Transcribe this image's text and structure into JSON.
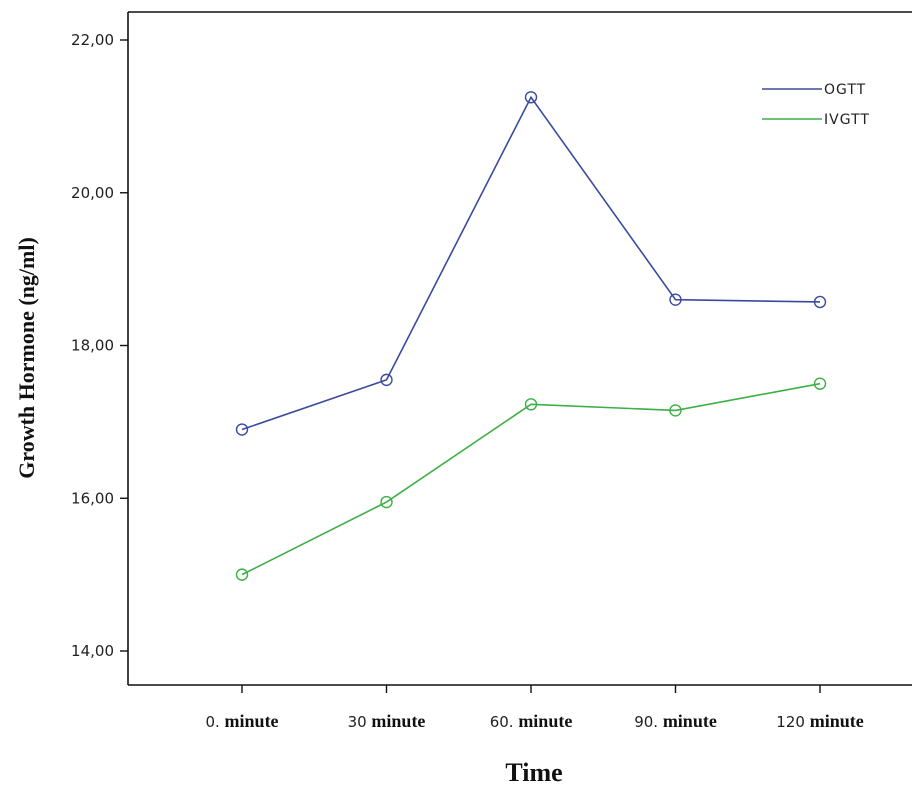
{
  "chart_data": {
    "type": "line",
    "title": "",
    "xlabel": "Time",
    "ylabel": "Growth Hormone (ng/ml)",
    "ylim": [
      13.5,
      22.5
    ],
    "y_ticks": [
      "14,00",
      "16,00",
      "18,00",
      "20,00",
      "22,00"
    ],
    "y_tick_values": [
      14,
      16,
      18,
      20,
      22
    ],
    "categories": [
      {
        "prefix": "0.",
        "word": "minute"
      },
      {
        "prefix": "30",
        "word": "minute"
      },
      {
        "prefix": "60.",
        "word": "minute"
      },
      {
        "prefix": "90.",
        "word": "minute"
      },
      {
        "prefix": "120",
        "word": "minute"
      }
    ],
    "series": [
      {
        "name": "OGTT",
        "color": "#3c4a9e",
        "values": [
          16.9,
          17.55,
          21.25,
          18.6,
          18.57
        ]
      },
      {
        "name": "IVGTT",
        "color": "#3cb043",
        "values": [
          15.0,
          15.95,
          17.23,
          17.15,
          17.5
        ]
      }
    ],
    "grid": false,
    "legend_position": "top-right",
    "marker": "open-circle"
  }
}
